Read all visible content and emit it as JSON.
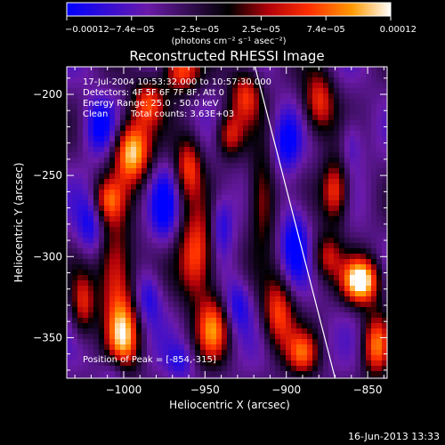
{
  "chart_data": {
    "type": "heatmap",
    "title": "Reconstructed RHESSI Image",
    "xlabel": "Heliocentric X (arcsec)",
    "ylabel": "Heliocentric Y (arcsec)",
    "xlim": [
      -1035,
      -838
    ],
    "ylim": [
      -375,
      -183
    ],
    "x_ticks": [
      -1000,
      -950,
      -900,
      -850
    ],
    "x_tick_labels": [
      "−1000",
      "−950",
      "−900",
      "−850"
    ],
    "y_ticks": [
      -200,
      -250,
      -300,
      -350
    ],
    "y_tick_labels": [
      "−200",
      "−250",
      "−300",
      "−350"
    ],
    "colorbar": {
      "range": [
        -0.00012,
        0.00012
      ],
      "tick_labels": [
        "−0.00012",
        "−7.4e−05",
        "−2.5e−05",
        "2.5e−05",
        "7.4e−05",
        "0.00012"
      ],
      "unit_label": "(photons cm⁻² s⁻¹ asec⁻²)"
    },
    "annotations": {
      "time_range": "17-Jul-2004 10:53:32.000 to 10:57:30.000",
      "detectors": "Detectors: 4F 5F 6F 7F 8F, Att 0",
      "energy_range": "Energy Range: 25.0 - 50.0 keV",
      "algorithm": "Clean",
      "total_counts": "Total counts: 3.63E+03",
      "peak_position": "Position of Peak = [-854,-315]"
    },
    "peak": [
      -854,
      -315
    ],
    "limb_line": [
      [
        -920,
        -180
      ],
      [
        -870,
        -375
      ]
    ],
    "colormap": [
      "#0000ff",
      "#6a1aa8",
      "#000000",
      "#b0000a",
      "#ff3000",
      "#ff9900",
      "#ffffff"
    ]
  },
  "footer": {
    "timestamp": "16-Jun-2013 13:33"
  }
}
